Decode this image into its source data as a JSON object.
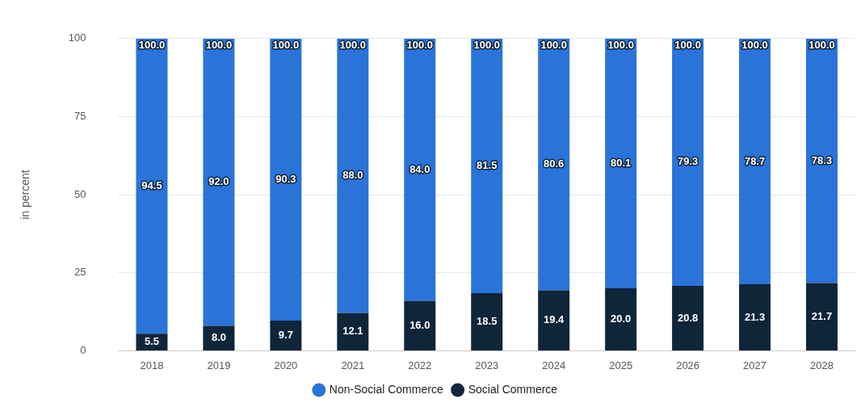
{
  "chart_data": {
    "type": "bar",
    "stacked": true,
    "ylabel": "in percent",
    "categories": [
      "2018",
      "2019",
      "2020",
      "2021",
      "2022",
      "2023",
      "2024",
      "2025",
      "2026",
      "2027",
      "2028"
    ],
    "series": [
      {
        "name": "Social Commerce",
        "color": "#0f2539",
        "values": [
          5.5,
          8.0,
          9.7,
          12.1,
          16.0,
          18.5,
          19.4,
          20.0,
          20.8,
          21.3,
          21.7
        ],
        "value_labels": [
          "5.5",
          "8.0",
          "9.7",
          "12.1",
          "16.0",
          "18.5",
          "19.4",
          "20.0",
          "20.8",
          "21.3",
          "21.7"
        ]
      },
      {
        "name": "Non-Social Commerce",
        "color": "#2a73d9",
        "values": [
          94.5,
          92.0,
          90.3,
          88.0,
          84.0,
          81.5,
          80.6,
          80.1,
          79.3,
          78.7,
          78.3
        ],
        "value_labels": [
          "94.5",
          "92.0",
          "90.3",
          "88.0",
          "84.0",
          "81.5",
          "80.6",
          "80.1",
          "79.3",
          "78.7",
          "78.3"
        ]
      }
    ],
    "totals": [
      "100.0",
      "100.0",
      "100.0",
      "100.0",
      "100.0",
      "100.0",
      "100.0",
      "100.0",
      "100.0",
      "100.0",
      "100.0"
    ],
    "ylim": [
      0,
      100
    ],
    "yticks": [
      0,
      25,
      50,
      75,
      100
    ],
    "grid": "y",
    "legend": "bottom"
  }
}
